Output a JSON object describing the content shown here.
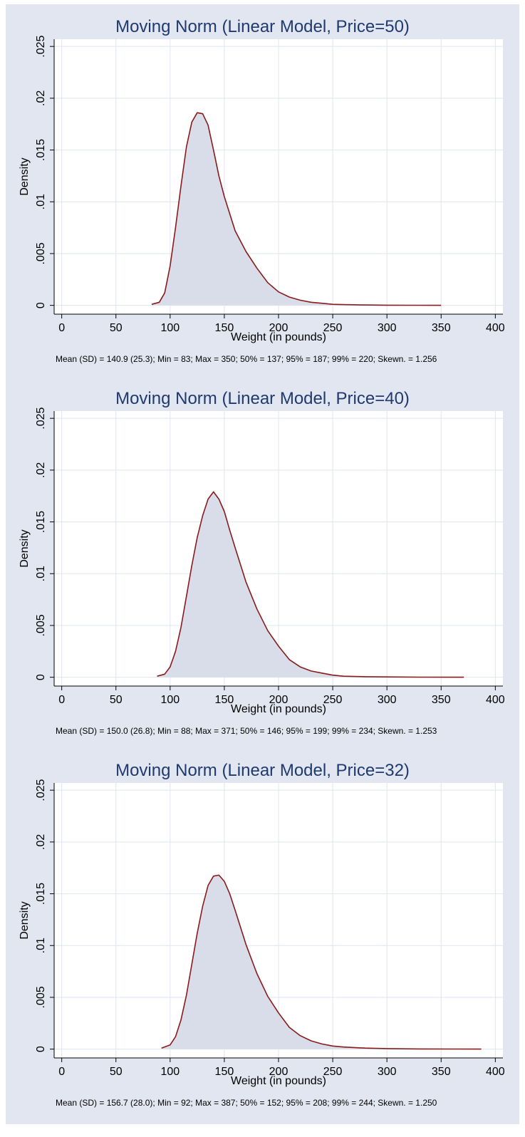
{
  "chart_data": [
    {
      "type": "area",
      "title": "Moving Norm (Linear Model, Price=50)",
      "xlabel": "Weight (in pounds)",
      "ylabel": "Density",
      "note": "Mean (SD) = 140.9 (25.3); Min = 83; Max = 350; 50% = 137; 95% = 187; 99% = 220; Skewn. = 1.256",
      "xlim": [
        -7,
        407
      ],
      "ylim": [
        -0.00085,
        0.0257
      ],
      "xticks": [
        0,
        50,
        100,
        150,
        200,
        250,
        300,
        350,
        400
      ],
      "xtick_labels": [
        "0",
        "50",
        "100",
        "150",
        "200",
        "250",
        "300",
        "350",
        "400"
      ],
      "yticks": [
        0,
        0.005,
        0.01,
        0.015,
        0.02,
        0.025
      ],
      "ytick_labels": [
        "0",
        ".005",
        ".01",
        ".015",
        ".02",
        ".025"
      ],
      "grid": true,
      "colors": {
        "fill": "#d9dde9",
        "line": "#8b1a1a",
        "grid": "#dfe4ee",
        "panel": "#e1e6f0"
      },
      "series": [
        {
          "x": [
            83,
            90,
            95,
            100,
            105,
            110,
            115,
            120,
            125,
            130,
            135,
            140,
            145,
            150,
            160,
            170,
            180,
            190,
            200,
            210,
            220,
            230,
            240,
            250,
            260,
            280,
            300,
            325,
            350
          ],
          "y": [
            0.0001,
            0.0003,
            0.0012,
            0.0038,
            0.0075,
            0.0115,
            0.0153,
            0.0177,
            0.0186,
            0.0185,
            0.0174,
            0.015,
            0.0125,
            0.0105,
            0.0072,
            0.0052,
            0.0036,
            0.0022,
            0.0013,
            0.0008,
            0.0005,
            0.0003,
            0.0002,
            0.0001,
            7e-05,
            4e-05,
            2e-05,
            1e-05,
            0.0
          ]
        }
      ]
    },
    {
      "type": "area",
      "title": "Moving Norm (Linear Model, Price=40)",
      "xlabel": "Weight (in pounds)",
      "ylabel": "Density",
      "note": "Mean (SD) = 150.0 (26.8); Min = 88; Max = 371; 50% = 146; 95% = 199; 99% = 234; Skewn. = 1.253",
      "xlim": [
        -7,
        407
      ],
      "ylim": [
        -0.00085,
        0.0257
      ],
      "xticks": [
        0,
        50,
        100,
        150,
        200,
        250,
        300,
        350,
        400
      ],
      "xtick_labels": [
        "0",
        "50",
        "100",
        "150",
        "200",
        "250",
        "300",
        "350",
        "400"
      ],
      "yticks": [
        0,
        0.005,
        0.01,
        0.015,
        0.02,
        0.025
      ],
      "ytick_labels": [
        "0",
        ".005",
        ".01",
        ".015",
        ".02",
        ".025"
      ],
      "grid": true,
      "colors": {
        "fill": "#d9dde9",
        "line": "#8b1a1a",
        "grid": "#dfe4ee",
        "panel": "#e1e6f0"
      },
      "series": [
        {
          "x": [
            88,
            95,
            100,
            105,
            110,
            115,
            120,
            125,
            130,
            135,
            140,
            145,
            150,
            155,
            160,
            170,
            180,
            190,
            200,
            210,
            220,
            230,
            240,
            250,
            260,
            280,
            300,
            330,
            371
          ],
          "y": [
            0.0001,
            0.0003,
            0.001,
            0.0025,
            0.0048,
            0.0078,
            0.0108,
            0.0135,
            0.0156,
            0.0172,
            0.0179,
            0.0172,
            0.016,
            0.0142,
            0.0125,
            0.0092,
            0.0066,
            0.0045,
            0.003,
            0.0017,
            0.001,
            0.0006,
            0.0004,
            0.0002,
            0.0001,
            5e-05,
            3e-05,
            1e-05,
            0.0
          ]
        }
      ]
    },
    {
      "type": "area",
      "title": "Moving Norm (Linear Model, Price=32)",
      "xlabel": "Weight (in pounds)",
      "ylabel": "Density",
      "note": "Mean (SD) = 156.7 (28.0); Min = 92; Max = 387; 50% = 152; 95% = 208; 99% = 244; Skewn. = 1.250",
      "xlim": [
        -7,
        407
      ],
      "ylim": [
        -0.00085,
        0.0257
      ],
      "xticks": [
        0,
        50,
        100,
        150,
        200,
        250,
        300,
        350,
        400
      ],
      "xtick_labels": [
        "0",
        "50",
        "100",
        "150",
        "200",
        "250",
        "300",
        "350",
        "400"
      ],
      "yticks": [
        0,
        0.005,
        0.01,
        0.015,
        0.02,
        0.025
      ],
      "ytick_labels": [
        "0",
        ".005",
        ".01",
        ".015",
        ".02",
        ".025"
      ],
      "grid": true,
      "colors": {
        "fill": "#d9dde9",
        "line": "#8b1a1a",
        "grid": "#dfe4ee",
        "panel": "#e1e6f0"
      },
      "series": [
        {
          "x": [
            92,
            100,
            105,
            110,
            115,
            120,
            125,
            130,
            135,
            140,
            145,
            150,
            155,
            160,
            170,
            180,
            190,
            200,
            210,
            220,
            230,
            240,
            250,
            260,
            280,
            300,
            330,
            360,
            387
          ],
          "y": [
            0.0001,
            0.0004,
            0.0012,
            0.0028,
            0.0052,
            0.0082,
            0.0112,
            0.0138,
            0.0158,
            0.0167,
            0.0168,
            0.0162,
            0.015,
            0.0134,
            0.0101,
            0.0073,
            0.0051,
            0.0035,
            0.0021,
            0.0013,
            0.0008,
            0.0005,
            0.0003,
            0.0002,
            0.0001,
            5e-05,
            2e-05,
            1e-05,
            0.0
          ]
        }
      ]
    }
  ]
}
